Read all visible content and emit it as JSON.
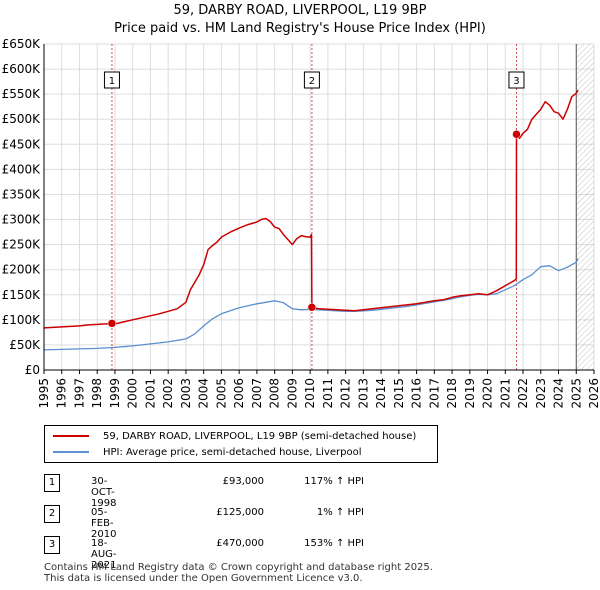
{
  "title": {
    "line1": "59, DARBY ROAD, LIVERPOOL, L19 9BP",
    "line2": "Price paid vs. HM Land Registry's House Price Index (HPI)"
  },
  "chart_data": {
    "type": "line",
    "title": "59, DARBY ROAD, LIVERPOOL, L19 9BP — Price paid vs. HM Land Registry's House Price Index (HPI)",
    "xlabel": "",
    "ylabel": "",
    "xlim": [
      1995,
      2026
    ],
    "ylim": [
      0,
      650000
    ],
    "x_ticks": [
      "1995",
      "1996",
      "1997",
      "1998",
      "1999",
      "2000",
      "2001",
      "2002",
      "2003",
      "2004",
      "2005",
      "2006",
      "2007",
      "2008",
      "2009",
      "2010",
      "2011",
      "2012",
      "2013",
      "2014",
      "2015",
      "2016",
      "2017",
      "2018",
      "2019",
      "2020",
      "2021",
      "2022",
      "2023",
      "2024",
      "2025",
      "2026"
    ],
    "y_ticks": [
      {
        "value": 0,
        "label": "£0"
      },
      {
        "value": 50000,
        "label": "£50K"
      },
      {
        "value": 100000,
        "label": "£100K"
      },
      {
        "value": 150000,
        "label": "£150K"
      },
      {
        "value": 200000,
        "label": "£200K"
      },
      {
        "value": 250000,
        "label": "£250K"
      },
      {
        "value": 300000,
        "label": "£300K"
      },
      {
        "value": 350000,
        "label": "£350K"
      },
      {
        "value": 400000,
        "label": "£400K"
      },
      {
        "value": 450000,
        "label": "£450K"
      },
      {
        "value": 500000,
        "label": "£500K"
      },
      {
        "value": 550000,
        "label": "£550K"
      },
      {
        "value": 600000,
        "label": "£600K"
      },
      {
        "value": 650000,
        "label": "£650K"
      }
    ],
    "grid": true,
    "colors": {
      "property": "#cc0000",
      "hpi": "#5b8fd0",
      "vline": "#cc0000",
      "grid": "#dddddd",
      "future_hatch": "#999999"
    },
    "hatch_from": 2025.0,
    "series": [
      {
        "name": "59, DARBY ROAD, LIVERPOOL, L19 9BP (semi-detached house)",
        "x": [
          1995.0,
          1995.5,
          1996.0,
          1996.5,
          1997.0,
          1997.5,
          1998.0,
          1998.5,
          1998.83,
          1999.0,
          1999.5,
          2000.0,
          2000.5,
          2001.0,
          2001.5,
          2002.0,
          2002.5,
          2003.0,
          2003.25,
          2003.5,
          2003.75,
          2004.0,
          2004.25,
          2004.5,
          2004.75,
          2005.0,
          2005.5,
          2006.0,
          2006.5,
          2007.0,
          2007.25,
          2007.5,
          2007.75,
          2008.0,
          2008.25,
          2008.5,
          2008.75,
          2009.0,
          2009.25,
          2009.5,
          2009.75,
          2010.0,
          2010.08,
          2010.1,
          2010.5,
          2011.0,
          2011.5,
          2012.0,
          2012.5,
          2013.0,
          2013.5,
          2014.0,
          2014.5,
          2015.0,
          2015.5,
          2016.0,
          2016.5,
          2017.0,
          2017.5,
          2018.0,
          2018.5,
          2019.0,
          2019.5,
          2020.0,
          2020.5,
          2021.0,
          2021.5,
          2021.62,
          2021.63,
          2021.8,
          2022.0,
          2022.25,
          2022.5,
          2022.75,
          2023.0,
          2023.25,
          2023.5,
          2023.75,
          2024.0,
          2024.25,
          2024.5,
          2024.75,
          2025.0,
          2025.1
        ],
        "y": [
          84000,
          85000,
          86000,
          87000,
          88000,
          90000,
          91000,
          92000,
          93000,
          92000,
          96000,
          100000,
          104000,
          108000,
          112000,
          117000,
          122000,
          135000,
          160000,
          175000,
          190000,
          210000,
          240000,
          248000,
          255000,
          265000,
          275000,
          283000,
          290000,
          295000,
          300000,
          302000,
          296000,
          285000,
          282000,
          270000,
          260000,
          250000,
          262000,
          268000,
          266000,
          265000,
          270000,
          125000,
          122000,
          121000,
          120000,
          119000,
          118000,
          120000,
          122000,
          124000,
          126000,
          128000,
          130000,
          132000,
          135000,
          138000,
          140000,
          145000,
          148000,
          150000,
          152000,
          150000,
          158000,
          168000,
          178000,
          182000,
          470000,
          462000,
          472000,
          480000,
          500000,
          510000,
          520000,
          535000,
          528000,
          515000,
          512000,
          500000,
          520000,
          545000,
          552000,
          558000
        ]
      },
      {
        "name": "HPI: Average price, semi-detached house, Liverpool",
        "x": [
          1995.0,
          1996.0,
          1997.0,
          1998.0,
          1999.0,
          2000.0,
          2001.0,
          2002.0,
          2003.0,
          2003.5,
          2004.0,
          2004.5,
          2005.0,
          2005.5,
          2006.0,
          2006.5,
          2007.0,
          2007.5,
          2008.0,
          2008.5,
          2009.0,
          2009.5,
          2010.0,
          2010.5,
          2011.0,
          2011.5,
          2012.0,
          2012.5,
          2013.0,
          2013.5,
          2014.0,
          2014.5,
          2015.0,
          2015.5,
          2016.0,
          2016.5,
          2017.0,
          2017.5,
          2018.0,
          2018.5,
          2019.0,
          2019.5,
          2020.0,
          2020.5,
          2021.0,
          2021.5,
          2022.0,
          2022.5,
          2023.0,
          2023.5,
          2024.0,
          2024.5,
          2025.0,
          2025.1
        ],
        "y": [
          40000,
          41000,
          42000,
          43000,
          45000,
          48000,
          52000,
          56000,
          62000,
          72000,
          88000,
          102000,
          112000,
          118000,
          124000,
          128000,
          132000,
          135000,
          138000,
          134000,
          122000,
          120000,
          121000,
          120000,
          119000,
          118000,
          117000,
          117000,
          118000,
          119000,
          121000,
          123000,
          125000,
          127000,
          130000,
          133000,
          136000,
          139000,
          142000,
          146000,
          149000,
          151000,
          150000,
          152000,
          160000,
          168000,
          180000,
          190000,
          206000,
          208000,
          198000,
          205000,
          215000,
          222000
        ]
      }
    ],
    "transactions": [
      {
        "num": "1",
        "x": 1998.83,
        "y": 93000
      },
      {
        "num": "2",
        "x": 2010.1,
        "y": 125000
      },
      {
        "num": "3",
        "x": 2021.63,
        "y": 470000
      }
    ]
  },
  "legend": {
    "property": "59, DARBY ROAD, LIVERPOOL, L19 9BP (semi-detached house)",
    "hpi": "HPI: Average price, semi-detached house, Liverpool"
  },
  "table": [
    {
      "num": "1",
      "date": "30-OCT-1998",
      "price": "£93,000",
      "hpi": "117% ↑ HPI"
    },
    {
      "num": "2",
      "date": "05-FEB-2010",
      "price": "£125,000",
      "hpi": "1% ↑ HPI"
    },
    {
      "num": "3",
      "date": "18-AUG-2021",
      "price": "£470,000",
      "hpi": "153% ↑ HPI"
    }
  ],
  "footer": {
    "line1": "Contains HM Land Registry data © Crown copyright and database right 2025.",
    "line2": "This data is licensed under the Open Government Licence v3.0."
  }
}
